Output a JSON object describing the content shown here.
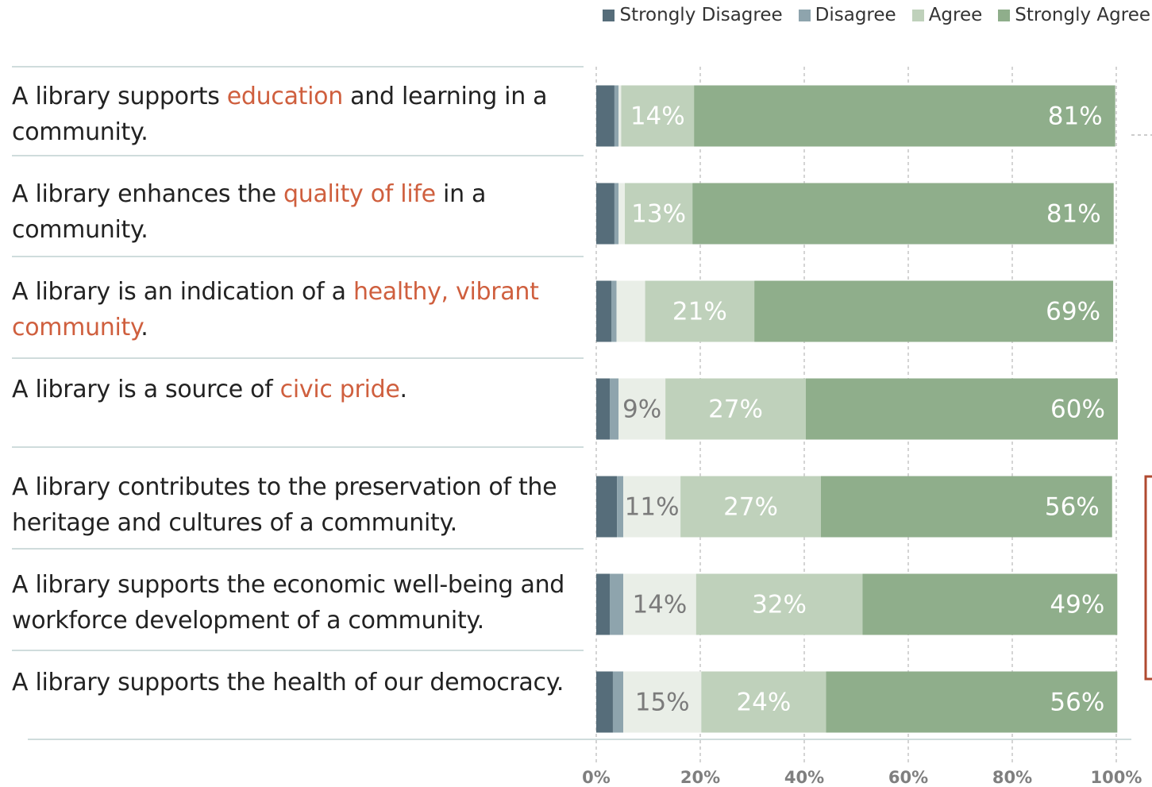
{
  "chart_data": {
    "type": "stacked_bar_horizontal",
    "categories": [
      "A library supports education and learning in a community.",
      "A library enhances the quality of life in a community.",
      "A library is an indication of a healthy, vibrant community.",
      "A library is a source of civic pride.",
      "A library contributes to the preservation of the heritage and cultures of a community.",
      "A library supports the economic well-being and workforce development of a community.",
      "A library supports the health of our democracy."
    ],
    "highlights": [
      "education",
      "quality of life",
      "healthy, vibrant community",
      "civic pride",
      null,
      null,
      null
    ],
    "highlight_color": "#cf5f3e",
    "series": [
      {
        "name": "Strongly Disagree",
        "color": "#566d7a",
        "values": [
          3.5,
          3.5,
          2.9,
          2.6,
          4,
          2.6,
          3.2
        ]
      },
      {
        "name": "Disagree",
        "color": "#8ea4ad",
        "values": [
          0.8,
          0.8,
          1,
          1.7,
          1.2,
          2.6,
          2
        ]
      },
      {
        "color": "#e9eee7",
        "label_color": "#7b7b7b",
        "values": [
          0.5,
          1.2,
          5.5,
          9,
          11,
          14,
          15
        ],
        "value_labels": [
          null,
          null,
          null,
          "9%",
          "11%",
          "14%",
          "15%"
        ]
      },
      {
        "name": "Agree",
        "color": "#bfd1bb",
        "label_color": "#ffffff",
        "values": [
          14,
          13,
          21,
          27,
          27,
          32,
          24
        ],
        "value_labels": [
          "14%",
          "13%",
          "21%",
          "27%",
          "27%",
          "32%",
          "24%"
        ]
      },
      {
        "name": "Strongly Agree",
        "color": "#8fae8b",
        "label_color": "#ffffff",
        "values": [
          81,
          81,
          69,
          60,
          56,
          49,
          56
        ],
        "value_labels": [
          "81%",
          "81%",
          "69%",
          "60%",
          "56%",
          "49%",
          "56%"
        ]
      }
    ],
    "xlim": [
      0,
      100
    ],
    "xticks": [
      {
        "value": 0,
        "label": "0%"
      },
      {
        "value": 20,
        "label": "20%"
      },
      {
        "value": 40,
        "label": "40%"
      },
      {
        "value": 60,
        "label": "60%"
      },
      {
        "value": 80,
        "label": "80%"
      },
      {
        "value": 100,
        "label": "100%"
      }
    ],
    "grid": true,
    "legend": "top-right"
  }
}
